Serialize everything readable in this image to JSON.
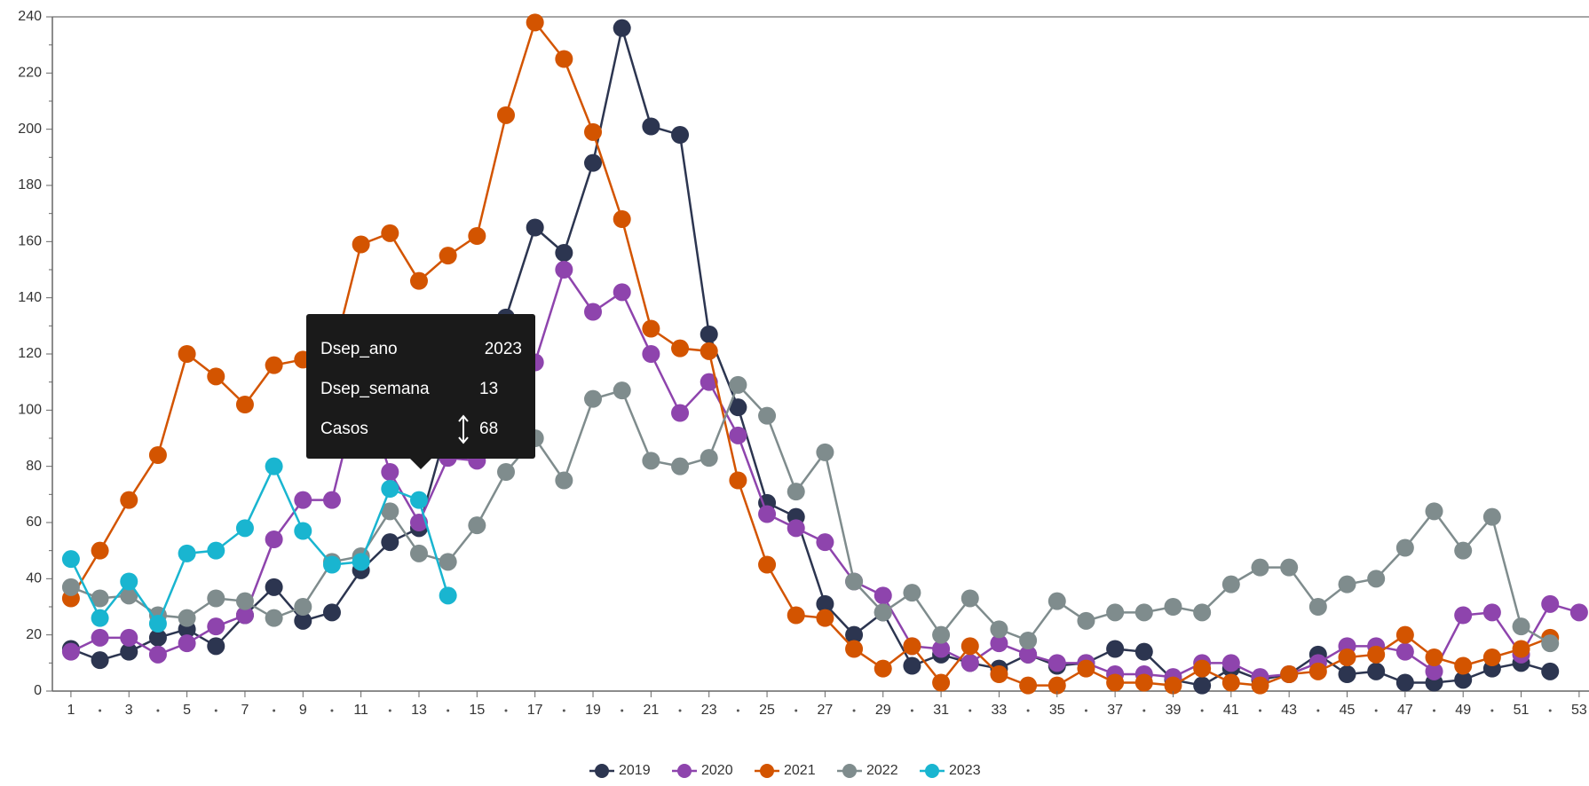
{
  "chart_data": {
    "type": "line",
    "x": [
      1,
      2,
      3,
      4,
      5,
      6,
      7,
      8,
      9,
      10,
      11,
      12,
      13,
      14,
      15,
      16,
      17,
      18,
      19,
      20,
      21,
      22,
      23,
      24,
      25,
      26,
      27,
      28,
      29,
      30,
      31,
      32,
      33,
      34,
      35,
      36,
      37,
      38,
      39,
      40,
      41,
      42,
      43,
      44,
      45,
      46,
      47,
      48,
      49,
      50,
      51,
      52,
      53
    ],
    "xlim": [
      0.36,
      53.34
    ],
    "xticks": [
      1,
      3,
      5,
      7,
      9,
      11,
      13,
      15,
      17,
      19,
      21,
      23,
      25,
      27,
      29,
      31,
      33,
      35,
      37,
      39,
      41,
      43,
      45,
      47,
      49,
      51,
      53
    ],
    "ylim": [
      0,
      240
    ],
    "yticks": [
      0,
      20,
      40,
      60,
      80,
      100,
      120,
      140,
      160,
      180,
      200,
      220,
      240
    ],
    "grid": false,
    "legend": "bottom",
    "series": [
      {
        "name": "2019",
        "color": "#2c3550",
        "values": [
          15,
          11,
          14,
          19,
          22,
          16,
          27,
          37,
          25,
          28,
          43,
          53,
          58,
          95,
          97,
          133,
          165,
          156,
          188,
          236,
          201,
          198,
          127,
          101,
          67,
          62,
          31,
          20,
          28,
          9,
          13,
          10,
          8,
          13,
          9,
          10,
          15,
          14,
          4,
          2,
          8,
          4,
          6,
          13,
          6,
          7,
          3,
          3,
          4,
          8,
          10,
          7,
          null
        ]
      },
      {
        "name": "2020",
        "color": "#8e44ad",
        "values": [
          14,
          19,
          19,
          13,
          17,
          23,
          27,
          54,
          68,
          68,
          110,
          78,
          60,
          83,
          82,
          100,
          117,
          150,
          135,
          142,
          120,
          99,
          110,
          91,
          63,
          58,
          53,
          39,
          34,
          16,
          15,
          10,
          17,
          13,
          10,
          10,
          6,
          6,
          5,
          10,
          10,
          5,
          6,
          10,
          16,
          16,
          14,
          7,
          27,
          28,
          13,
          31,
          28
        ]
      },
      {
        "name": "2021",
        "color": "#d35400",
        "values": [
          33,
          50,
          68,
          84,
          120,
          112,
          102,
          116,
          118,
          118,
          159,
          163,
          146,
          155,
          162,
          205,
          238,
          225,
          199,
          168,
          129,
          122,
          121,
          75,
          45,
          27,
          26,
          15,
          8,
          16,
          3,
          16,
          6,
          2,
          2,
          8,
          3,
          3,
          2,
          8,
          3,
          2,
          6,
          7,
          12,
          13,
          20,
          12,
          9,
          12,
          15,
          19,
          null
        ]
      },
      {
        "name": "2022",
        "color": "#7f8c8d",
        "values": [
          37,
          33,
          34,
          27,
          26,
          33,
          32,
          26,
          30,
          46,
          48,
          64,
          49,
          46,
          59,
          78,
          90,
          75,
          104,
          107,
          82,
          80,
          83,
          109,
          98,
          71,
          85,
          39,
          28,
          35,
          20,
          33,
          22,
          18,
          32,
          25,
          28,
          28,
          30,
          28,
          38,
          44,
          44,
          30,
          38,
          40,
          51,
          64,
          50,
          62,
          23,
          17,
          null
        ]
      },
      {
        "name": "2023",
        "color": "#19b5d0",
        "values": [
          47,
          26,
          39,
          24,
          49,
          50,
          58,
          80,
          57,
          45,
          46,
          72,
          68,
          34,
          null,
          null,
          null,
          null,
          null,
          null,
          null,
          null,
          null,
          null,
          null,
          null,
          null,
          null,
          null,
          null,
          null,
          null,
          null,
          null,
          null,
          null,
          null,
          null,
          null,
          null,
          null,
          null,
          null,
          null,
          null,
          null,
          null,
          null,
          null,
          null,
          null,
          null,
          null
        ]
      }
    ],
    "tooltip": {
      "rows": [
        [
          "Dsep_ano",
          "2023"
        ],
        [
          "Dsep_semana",
          "13"
        ],
        [
          "Casos",
          "68"
        ]
      ]
    }
  }
}
